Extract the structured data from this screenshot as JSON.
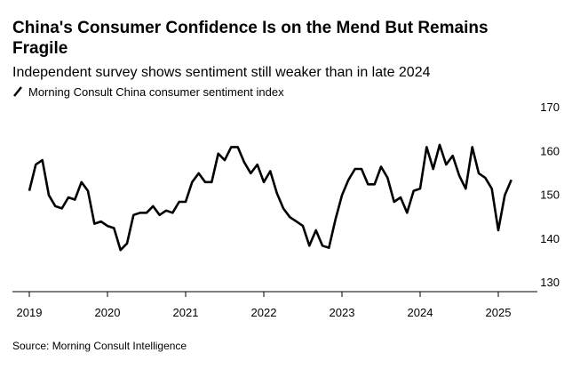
{
  "chart_data": {
    "type": "line",
    "title": "China's Consumer Confidence Is on the Mend But Remains Fragile",
    "subtitle": "Independent survey shows sentiment still weaker than in late 2024",
    "source": "Source: Morning Consult Intelligence",
    "categories": [
      "2019",
      null,
      null,
      null,
      null,
      null,
      null,
      null,
      null,
      null,
      null,
      null,
      "2020",
      null,
      null,
      null,
      null,
      null,
      null,
      null,
      null,
      null,
      null,
      null,
      "2021",
      null,
      null,
      null,
      null,
      null,
      null,
      null,
      null,
      null,
      null,
      null,
      "2022",
      null,
      null,
      null,
      null,
      null,
      null,
      null,
      null,
      null,
      null,
      null,
      "2023",
      null,
      null,
      null,
      null,
      null,
      null,
      null,
      null,
      null,
      null,
      null,
      "2024",
      null,
      null,
      null,
      null,
      null,
      null,
      null,
      null,
      null,
      null,
      null,
      "2025",
      null,
      null
    ],
    "series": [
      {
        "name": "Morning Consult China consumer sentiment index",
        "color": "#000000",
        "values": [
          151,
          157,
          158,
          150,
          147.5,
          147,
          149.5,
          149,
          153,
          151,
          143.5,
          144,
          143,
          142.5,
          137.5,
          139,
          145.5,
          146,
          146,
          147.5,
          145.5,
          146.5,
          146,
          148.5,
          148.5,
          153,
          155,
          153,
          153,
          159.5,
          158,
          161,
          161,
          157.5,
          155,
          157,
          153,
          155.5,
          150.5,
          147,
          145,
          144,
          143,
          138.5,
          142,
          138.5,
          138,
          144.5,
          150,
          153.5,
          156,
          156,
          152.5,
          152.5,
          156.5,
          154,
          148.5,
          149.5,
          146,
          151,
          151.5,
          161,
          156,
          161.5,
          157,
          159,
          154.5,
          151.5,
          161,
          155,
          154,
          151.5,
          142,
          150,
          153.5
        ]
      }
    ],
    "ylim": [
      128,
      170
    ],
    "yticks": [
      130,
      140,
      150,
      160,
      170
    ],
    "grid": false
  }
}
